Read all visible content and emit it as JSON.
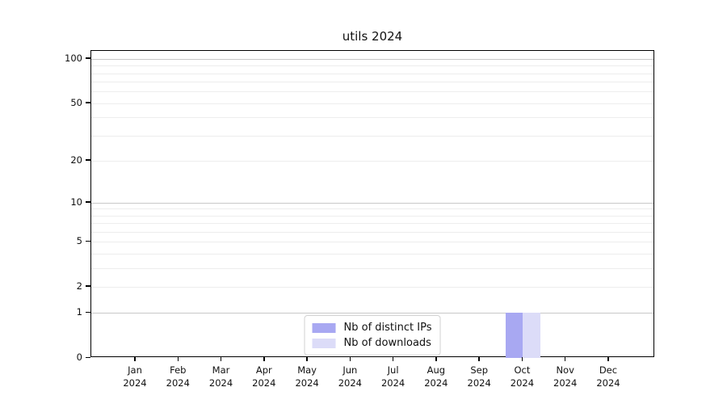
{
  "chart_data": {
    "type": "bar",
    "title": "utils 2024",
    "categories": [
      "Jan",
      "Feb",
      "Mar",
      "Apr",
      "May",
      "Jun",
      "Jul",
      "Aug",
      "Sep",
      "Oct",
      "Nov",
      "Dec"
    ],
    "category_year": "2024",
    "series": [
      {
        "name": "Nb of distinct IPs",
        "color": "#a8a8f2",
        "values": [
          0,
          0,
          0,
          0,
          0,
          0,
          0,
          0,
          0,
          1,
          0,
          0
        ]
      },
      {
        "name": "Nb of downloads",
        "color": "#dcdcf8",
        "values": [
          0,
          0,
          0,
          0,
          0,
          0,
          0,
          0,
          0,
          1,
          0,
          0
        ]
      }
    ],
    "y_axis": {
      "scale": "log1p",
      "tick_labels": [
        0,
        1,
        2,
        5,
        10,
        20,
        50,
        100
      ],
      "major_gridlines": [
        1,
        10,
        100
      ],
      "minor_gridlines": [
        2,
        3,
        4,
        5,
        6,
        7,
        8,
        9,
        20,
        30,
        40,
        50,
        60,
        70,
        80,
        90
      ],
      "range_max": 113.4
    },
    "xlabel": "",
    "ylabel": "",
    "grid": true,
    "legend_position": "lower center"
  },
  "colors": {
    "major_grid": "#c8c8c8",
    "minor_grid": "#ededed",
    "axis_frame": "#000000",
    "background": "#ffffff"
  }
}
